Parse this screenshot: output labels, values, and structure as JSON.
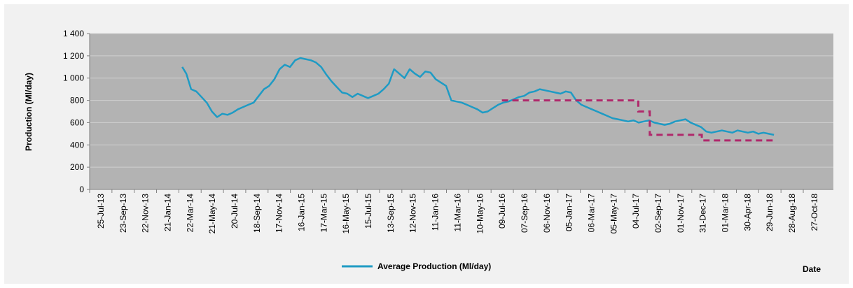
{
  "chart_data": {
    "type": "line",
    "ylabel": "Production  (Ml/day)",
    "xlabel": "Date",
    "ylim": [
      0,
      1400
    ],
    "y_ticks": [
      {
        "value": 0,
        "label": "0"
      },
      {
        "value": 200,
        "label": "200"
      },
      {
        "value": 400,
        "label": "400"
      },
      {
        "value": 600,
        "label": "600"
      },
      {
        "value": 800,
        "label": "800"
      },
      {
        "value": 1000,
        "label": "1 000"
      },
      {
        "value": 1200,
        "label": "1 200"
      },
      {
        "value": 1400,
        "label": "1 400"
      }
    ],
    "x_tick_labels": [
      "25-Jul-13",
      "23-Sep-13",
      "22-Nov-13",
      "21-Jan-14",
      "22-Mar-14",
      "21-May-14",
      "20-Jul-14",
      "18-Sep-14",
      "17-Nov-14",
      "16-Jan-15",
      "17-Mar-15",
      "16-May-15",
      "15-Jul-15",
      "13-Sep-15",
      "12-Nov-15",
      "11-Jan-16",
      "11-Mar-16",
      "10-May-16",
      "09-Jul-16",
      "07-Sep-16",
      "06-Nov-16",
      "05-Jan-17",
      "06-Mar-17",
      "05-May-17",
      "04-Jul-17",
      "02-Sep-17",
      "01-Nov-17",
      "31-Dec-17",
      "01-Mar-18",
      "30-Apr-18",
      "29-Jun-18",
      "28-Aug-18",
      "27-Oct-18"
    ],
    "grid": true,
    "legend_position": "bottom",
    "series": [
      {
        "name": "Average Production  (Ml/day)",
        "color": "#1f9bc4",
        "style": "solid",
        "x": [
          "2014-03-01",
          "2014-03-12",
          "2014-03-25",
          "2014-04-08",
          "2014-04-22",
          "2014-05-06",
          "2014-05-20",
          "2014-06-03",
          "2014-06-17",
          "2014-07-01",
          "2014-07-15",
          "2014-07-29",
          "2014-08-12",
          "2014-08-26",
          "2014-09-09",
          "2014-09-23",
          "2014-10-07",
          "2014-10-21",
          "2014-11-04",
          "2014-11-18",
          "2014-12-02",
          "2014-12-16",
          "2014-12-30",
          "2015-01-13",
          "2015-01-27",
          "2015-02-10",
          "2015-02-24",
          "2015-03-10",
          "2015-03-24",
          "2015-04-07",
          "2015-04-21",
          "2015-05-05",
          "2015-05-19",
          "2015-06-02",
          "2015-06-16",
          "2015-06-30",
          "2015-07-14",
          "2015-07-28",
          "2015-08-11",
          "2015-08-25",
          "2015-09-08",
          "2015-09-22",
          "2015-10-06",
          "2015-10-20",
          "2015-11-03",
          "2015-11-17",
          "2015-12-01",
          "2015-12-15",
          "2015-12-29",
          "2016-01-12",
          "2016-01-26",
          "2016-02-09",
          "2016-02-23",
          "2016-03-08",
          "2016-03-22",
          "2016-04-05",
          "2016-04-19",
          "2016-05-03",
          "2016-05-17",
          "2016-05-31",
          "2016-06-14",
          "2016-06-28",
          "2016-07-12",
          "2016-07-26",
          "2016-08-09",
          "2016-08-23",
          "2016-09-06",
          "2016-09-20",
          "2016-10-04",
          "2016-10-18",
          "2016-11-01",
          "2016-11-15",
          "2016-11-29",
          "2016-12-13",
          "2016-12-27",
          "2017-01-10",
          "2017-01-24",
          "2017-02-07",
          "2017-02-21",
          "2017-03-07",
          "2017-03-21",
          "2017-04-04",
          "2017-04-18",
          "2017-05-02",
          "2017-05-16",
          "2017-05-30",
          "2017-06-13",
          "2017-06-27",
          "2017-07-11",
          "2017-07-25",
          "2017-08-08",
          "2017-08-22",
          "2017-09-05",
          "2017-09-19",
          "2017-10-03",
          "2017-10-17",
          "2017-10-31",
          "2017-11-14",
          "2017-11-28",
          "2017-12-12",
          "2017-12-26",
          "2018-01-09",
          "2018-01-23",
          "2018-02-06",
          "2018-02-20",
          "2018-03-06",
          "2018-03-20",
          "2018-04-03",
          "2018-04-17",
          "2018-05-01",
          "2018-05-15",
          "2018-05-29",
          "2018-06-12",
          "2018-06-26",
          "2018-07-10"
        ],
        "values": [
          1100,
          1040,
          900,
          880,
          830,
          780,
          700,
          650,
          680,
          670,
          690,
          720,
          740,
          760,
          780,
          840,
          900,
          930,
          990,
          1080,
          1120,
          1100,
          1160,
          1180,
          1170,
          1160,
          1140,
          1100,
          1030,
          970,
          920,
          870,
          860,
          830,
          860,
          840,
          820,
          840,
          860,
          900,
          950,
          1080,
          1040,
          1000,
          1080,
          1040,
          1010,
          1060,
          1050,
          990,
          960,
          930,
          800,
          790,
          780,
          760,
          740,
          720,
          690,
          700,
          730,
          760,
          780,
          790,
          810,
          830,
          840,
          870,
          880,
          900,
          890,
          880,
          870,
          860,
          880,
          870,
          800,
          760,
          740,
          720,
          700,
          680,
          660,
          640,
          630,
          620,
          610,
          620,
          600,
          610,
          620,
          600,
          590,
          580,
          590,
          610,
          620,
          630,
          600,
          580,
          560,
          520,
          510,
          520,
          530,
          520,
          510,
          530,
          520,
          510,
          520,
          500,
          510,
          500,
          490
        ]
      },
      {
        "name": "",
        "color": "#b0286b",
        "style": "dashed",
        "x": [
          "2016-07-08",
          "2017-07-10",
          "2017-07-10",
          "2017-08-10",
          "2017-08-10",
          "2017-12-28",
          "2017-12-28",
          "2018-07-12"
        ],
        "values": [
          800,
          800,
          700,
          700,
          490,
          490,
          440,
          440
        ]
      }
    ]
  }
}
